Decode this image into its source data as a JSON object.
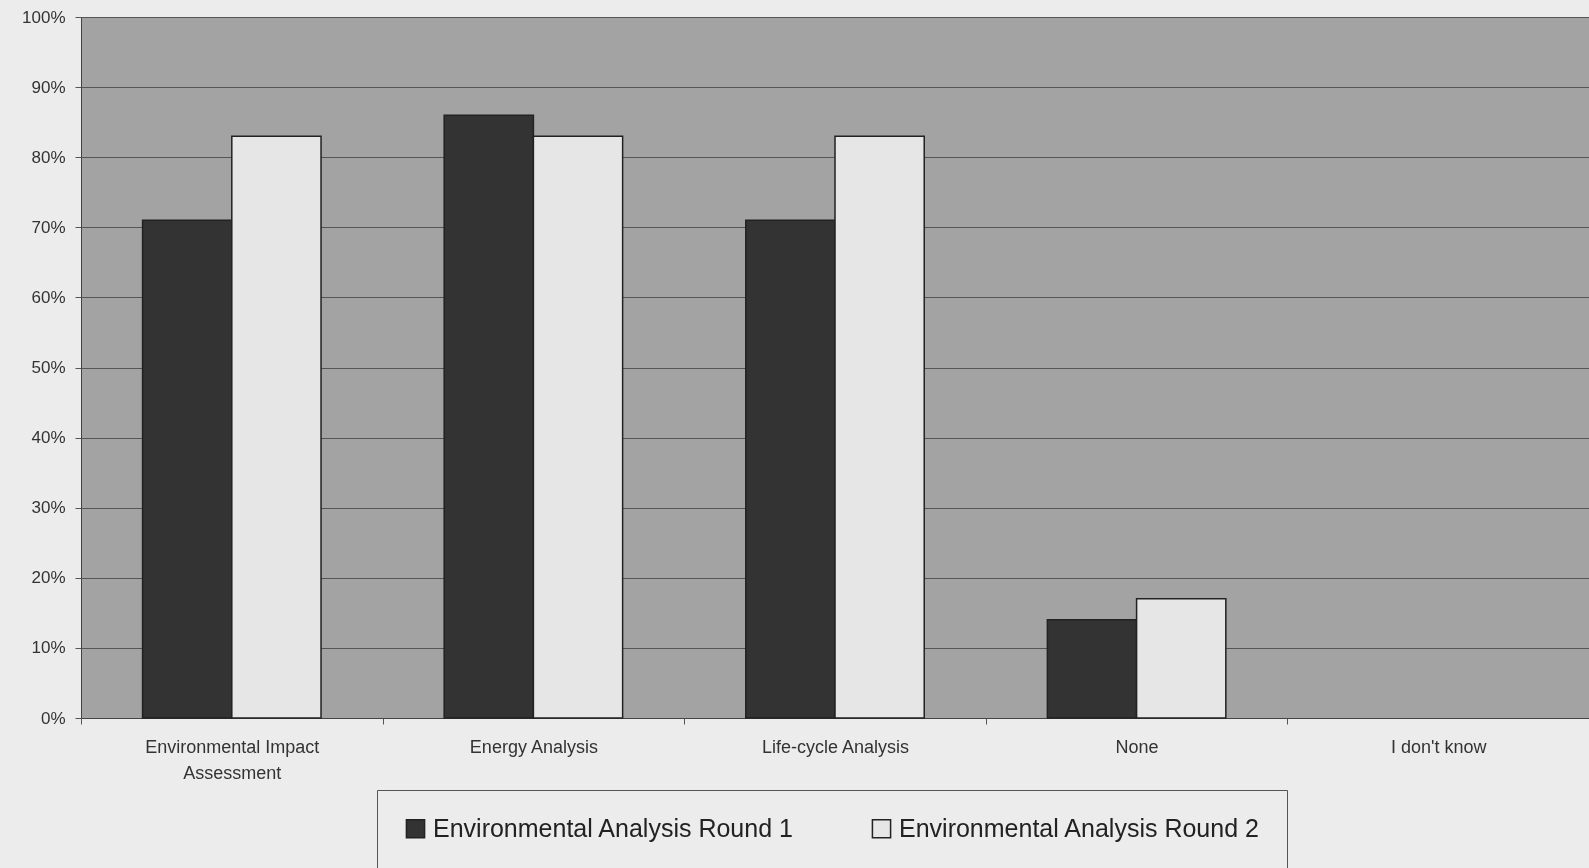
{
  "chart_data": {
    "type": "bar",
    "categories": [
      "Environmental Impact Assessment",
      "Energy Analysis",
      "Life-cycle Analysis",
      "None",
      "I don't know"
    ],
    "series": [
      {
        "name": "Environmental Analysis Round 1",
        "color": "#333333",
        "values": [
          71,
          86,
          71,
          14,
          null
        ]
      },
      {
        "name": "Environmental Analysis Round 2",
        "color": "#e6e6e6",
        "values": [
          83,
          83,
          83,
          17,
          null
        ]
      }
    ],
    "ylim": [
      0,
      100
    ],
    "yticks": [
      {
        "value": 0,
        "label": "0%"
      },
      {
        "value": 10,
        "label": "10%"
      },
      {
        "value": 20,
        "label": "20%"
      },
      {
        "value": 30,
        "label": "30%"
      },
      {
        "value": 40,
        "label": "40%"
      },
      {
        "value": 50,
        "label": "50%"
      },
      {
        "value": 60,
        "label": "60%"
      },
      {
        "value": 70,
        "label": "70%"
      },
      {
        "value": 80,
        "label": "80%"
      },
      {
        "value": 90,
        "label": "90%"
      },
      {
        "value": 100,
        "label": "100%"
      }
    ],
    "grid": "y",
    "legend": "bottom"
  }
}
